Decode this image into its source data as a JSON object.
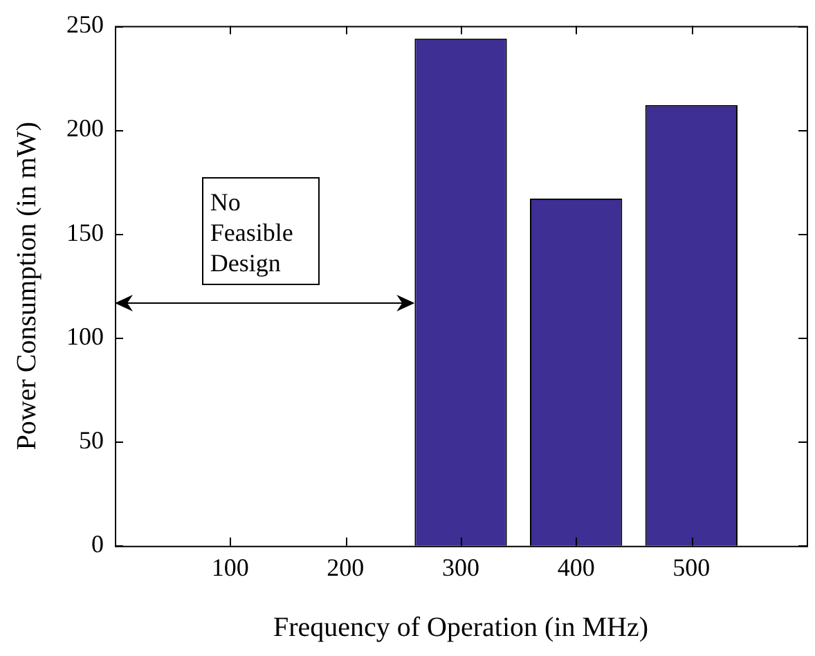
{
  "chart_data": {
    "type": "bar",
    "xlabel": "Frequency of Operation (in MHz)",
    "ylabel": "Power Consumption (in mW)",
    "x": [
      300,
      400,
      500
    ],
    "values": [
      244,
      167,
      212
    ],
    "color": "#3d2f94",
    "xlim": [
      0,
      600
    ],
    "xticks": [
      100,
      200,
      300,
      400,
      500
    ],
    "ylim": [
      0,
      250
    ],
    "yticks": [
      0,
      50,
      100,
      150,
      200,
      250
    ],
    "grid": false,
    "legend": false,
    "annotations": [
      "No Feasible Design"
    ]
  }
}
